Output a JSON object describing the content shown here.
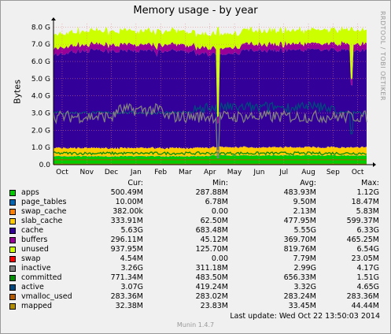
{
  "title": "Memory usage - by year",
  "ylabel": "Bytes",
  "side_text": "RRDTOOL / TOBI OETIKER",
  "last_update": "Last update: Wed Oct 22 13:50:03 2014",
  "version": "Munin 1.4.7",
  "legend_headers": {
    "cur": "Cur:",
    "min": "Min:",
    "avg": "Avg:",
    "max": "Max:"
  },
  "legend": [
    {
      "name": "apps",
      "color": "#00cc00",
      "cur": "500.49M",
      "min": "287.88M",
      "avg": "483.93M",
      "max": "1.12G"
    },
    {
      "name": "page_tables",
      "color": "#0066b3",
      "cur": "10.00M",
      "min": "6.78M",
      "avg": "9.50M",
      "max": "18.47M"
    },
    {
      "name": "swap_cache",
      "color": "#ff8000",
      "cur": "382.00k",
      "min": "0.00",
      "avg": "2.13M",
      "max": "5.83M"
    },
    {
      "name": "slab_cache",
      "color": "#ffcc00",
      "cur": "333.91M",
      "min": "62.50M",
      "avg": "477.95M",
      "max": "599.37M"
    },
    {
      "name": "cache",
      "color": "#330099",
      "cur": "5.63G",
      "min": "683.48M",
      "avg": "5.55G",
      "max": "6.33G"
    },
    {
      "name": "buffers",
      "color": "#990099",
      "cur": "296.11M",
      "min": "45.12M",
      "avg": "369.70M",
      "max": "465.25M"
    },
    {
      "name": "unused",
      "color": "#ccff00",
      "cur": "937.95M",
      "min": "125.70M",
      "avg": "819.76M",
      "max": "6.54G"
    },
    {
      "name": "swap",
      "color": "#ff0000",
      "cur": "4.54M",
      "min": "0.00",
      "avg": "7.79M",
      "max": "23.05M"
    },
    {
      "name": "inactive",
      "color": "#808080",
      "cur": "3.26G",
      "min": "311.18M",
      "avg": "2.99G",
      "max": "4.17G"
    },
    {
      "name": "committed",
      "color": "#008f00",
      "cur": "771.34M",
      "min": "483.50M",
      "avg": "656.33M",
      "max": "1.51G"
    },
    {
      "name": "active",
      "color": "#00487d",
      "cur": "3.07G",
      "min": "419.24M",
      "avg": "3.32G",
      "max": "4.65G"
    },
    {
      "name": "vmalloc_used",
      "color": "#b35a00",
      "cur": "283.36M",
      "min": "283.02M",
      "avg": "283.24M",
      "max": "283.36M"
    },
    {
      "name": "mapped",
      "color": "#b38f00",
      "cur": "32.38M",
      "min": "23.83M",
      "avg": "33.45M",
      "max": "44.44M"
    }
  ],
  "chart_data": {
    "type": "area",
    "title": "Memory usage - by year",
    "ylabel": "Bytes",
    "yticks": [
      "0.0",
      "1.0 G",
      "2.0 G",
      "3.0 G",
      "4.0 G",
      "5.0 G",
      "6.0 G",
      "7.0 G",
      "8.0 G"
    ],
    "ylim": [
      0,
      8.2
    ],
    "unit": "G",
    "months": [
      "Oct",
      "Nov",
      "Dec",
      "Jan",
      "Feb",
      "Mar",
      "Apr",
      "May",
      "Jun",
      "Jul",
      "Aug",
      "Sep",
      "Oct"
    ],
    "grid": true,
    "approx_levels": {
      "apps": 0.48,
      "page_tables": 0.01,
      "swap_cache": 0.002,
      "slab_cache": 0.47,
      "cache": 5.5,
      "buffers": 0.36,
      "unused": 0.8,
      "inactive": 2.99,
      "committed": 0.66,
      "active": 3.32,
      "vmalloc_used": 0.28,
      "mapped": 0.03
    }
  }
}
